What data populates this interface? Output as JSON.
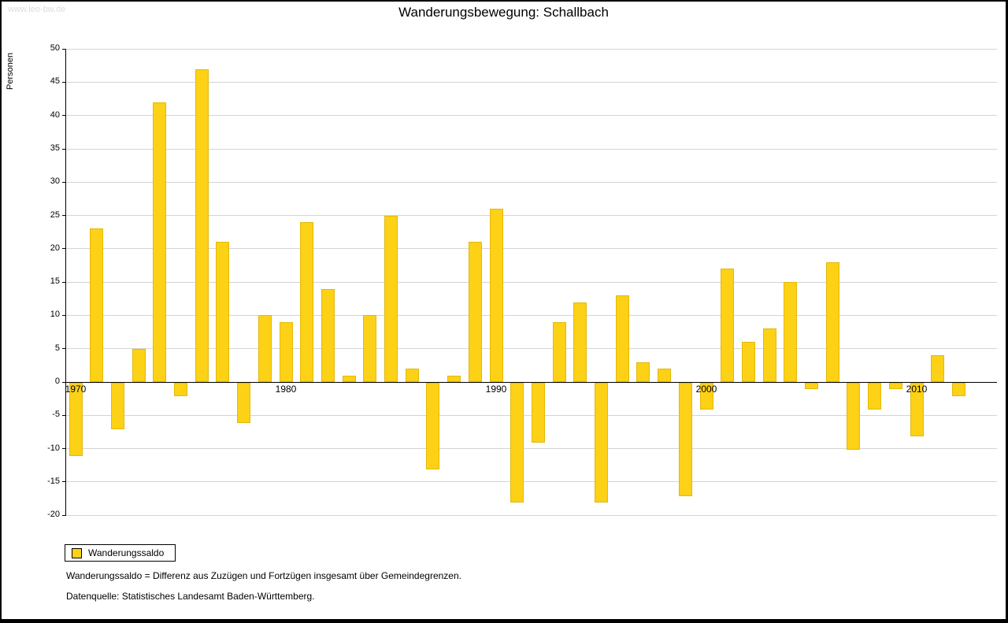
{
  "watermark": "www.leo-bw.de",
  "title": "Wanderungsbewegung: Schallbach",
  "y_axis_label": "Personen",
  "legend": {
    "label": "Wanderungssaldo"
  },
  "footnotes": {
    "definition": "Wanderungssaldo = Differenz aus Zuzügen und Fortzügen insgesamt über Gemeindegrenzen.",
    "source": "Datenquelle: Statistisches Landesamt Baden-Württemberg."
  },
  "colors": {
    "bar": "#FCD116",
    "grid": "#D4D4D4",
    "axis": "#000000",
    "watermark": "#DCDCDC"
  },
  "chart_data": {
    "type": "bar",
    "title": "Wanderungsbewegung: Schallbach",
    "xlabel": "",
    "ylabel": "Personen",
    "ylim": [
      -20,
      50
    ],
    "ytick_step": 5,
    "grid": true,
    "legend_position": "bottom-left",
    "xticks": [
      1970,
      1980,
      1990,
      2000,
      2010
    ],
    "x": [
      1970,
      1971,
      1972,
      1973,
      1974,
      1975,
      1976,
      1977,
      1978,
      1979,
      1980,
      1981,
      1982,
      1983,
      1984,
      1985,
      1986,
      1987,
      1988,
      1989,
      1990,
      1991,
      1992,
      1993,
      1994,
      1995,
      1996,
      1997,
      1998,
      1999,
      2000,
      2001,
      2002,
      2003,
      2004,
      2005,
      2006,
      2007,
      2008,
      2009,
      2010,
      2011,
      2012
    ],
    "series": [
      {
        "name": "Wanderungssaldo",
        "color": "#FCD116",
        "values": [
          -11,
          23,
          -7,
          5,
          42,
          -2,
          47,
          21,
          -6,
          10,
          9,
          24,
          14,
          1,
          10,
          25,
          2,
          -13,
          1,
          21,
          26,
          -18,
          -9,
          9,
          12,
          -18,
          13,
          3,
          2,
          -17,
          -4,
          17,
          6,
          8,
          15,
          -1,
          18,
          -10,
          -4,
          -1,
          -8,
          4,
          -2
        ]
      }
    ]
  }
}
